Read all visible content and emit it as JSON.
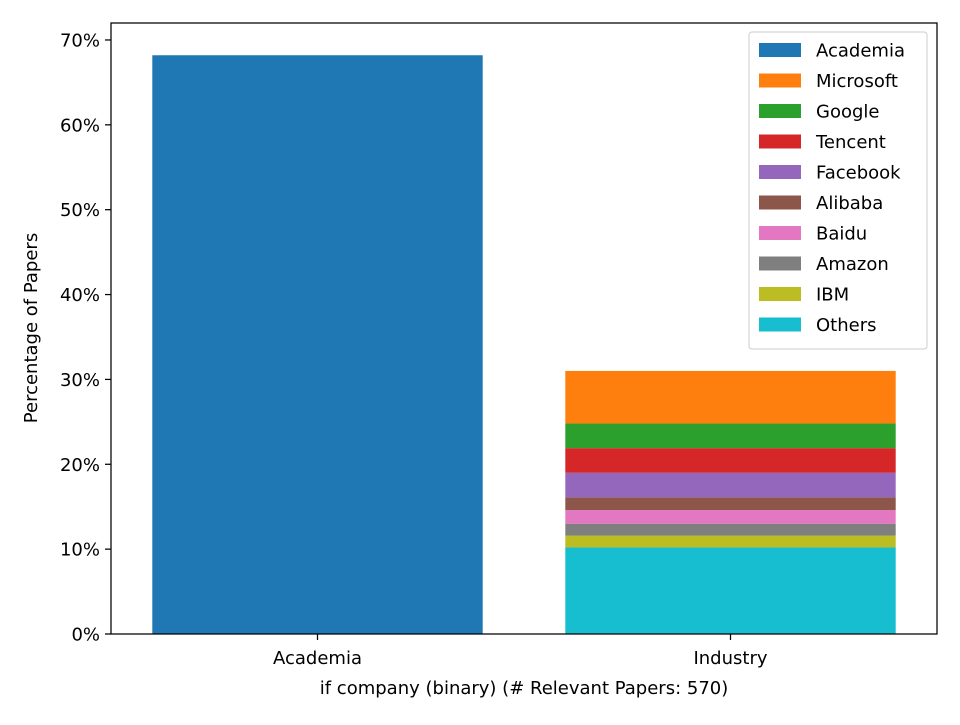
{
  "chart_data": {
    "type": "bar",
    "stacked": true,
    "categories": [
      "Academia",
      "Industry"
    ],
    "xlabel": "if company (binary) (# Relevant Papers: 570)",
    "ylabel": "Percentage of Papers",
    "ylim": [
      0,
      72
    ],
    "yticks": [
      0,
      10,
      20,
      30,
      40,
      50,
      60,
      70
    ],
    "ytick_suffix": "%",
    "grid": false,
    "legend": {
      "position": "top-right"
    },
    "series": [
      {
        "name": "Academia",
        "color": "#1f77b4",
        "values": [
          68.2,
          0
        ]
      },
      {
        "name": "Others",
        "color": "#17becf",
        "values": [
          0,
          10.2
        ]
      },
      {
        "name": "IBM",
        "color": "#bcbd22",
        "values": [
          0,
          1.4
        ]
      },
      {
        "name": "Amazon",
        "color": "#7f7f7f",
        "values": [
          0,
          1.4
        ]
      },
      {
        "name": "Baidu",
        "color": "#e377c2",
        "values": [
          0,
          1.6
        ]
      },
      {
        "name": "Alibaba",
        "color": "#8c564b",
        "values": [
          0,
          1.5
        ]
      },
      {
        "name": "Facebook",
        "color": "#9467bd",
        "values": [
          0,
          2.9
        ]
      },
      {
        "name": "Tencent",
        "color": "#d62728",
        "values": [
          0,
          2.9
        ]
      },
      {
        "name": "Google",
        "color": "#2ca02c",
        "values": [
          0,
          2.9
        ]
      },
      {
        "name": "Microsoft",
        "color": "#ff7f0e",
        "values": [
          0,
          6.2
        ]
      }
    ],
    "legend_order": [
      "Academia",
      "Microsoft",
      "Google",
      "Tencent",
      "Facebook",
      "Alibaba",
      "Baidu",
      "Amazon",
      "IBM",
      "Others"
    ]
  }
}
